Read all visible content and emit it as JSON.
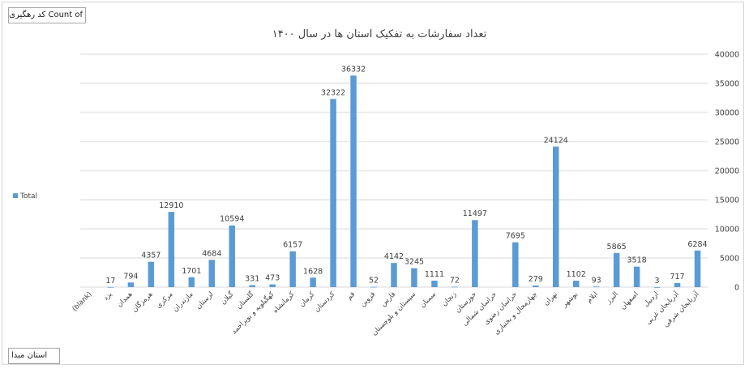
{
  "pivot": {
    "value_field_label": "Count of کد رهگیری",
    "axis_field_label": "استان مبدا"
  },
  "chart_data": {
    "type": "bar",
    "title": "تعداد سفارشات به تفکیک استان ها در سال ۱۴۰۰",
    "xlabel": "",
    "ylabel": "",
    "ylim": [
      0,
      40000
    ],
    "yticks": [
      0,
      5000,
      10000,
      15000,
      20000,
      25000,
      30000,
      35000,
      40000
    ],
    "y_axis_side": "right",
    "grid": true,
    "legend_position": "left",
    "colors": {
      "bar": "#5b9bd5",
      "grid": "#d9d9d9",
      "text": "#404040"
    },
    "categories": [
      "(blank)",
      "یزد",
      "همدان",
      "هرمزگان",
      "مرکزی",
      "مازندران",
      "لرستان",
      "گیلان",
      "گلستان",
      "کهگیلویه و بویراحمد",
      "کرمانشاه",
      "کرمان",
      "کردستان",
      "قم",
      "قزوین",
      "فارس",
      "سیستان و بلوچستان",
      "سمنان",
      "زنجان",
      "خوزستان",
      "خراسان شمالی",
      "خراسان رضوی",
      "چهارمحال و بختیاری",
      "تهران",
      "بوشهر",
      "ایلام",
      "البرز",
      "اصفهان",
      "اردبیل",
      "آذربایجان غربی",
      "آذربایجان شرقی"
    ],
    "series": [
      {
        "name": "Total",
        "values": [
          null,
          17,
          794,
          4357,
          12910,
          1701,
          4684,
          10594,
          331,
          473,
          6157,
          1628,
          32322,
          36332,
          52,
          4142,
          3245,
          1111,
          72,
          11497,
          null,
          7695,
          279,
          24124,
          1102,
          93,
          5865,
          3518,
          3,
          717,
          6284
        ]
      }
    ]
  }
}
